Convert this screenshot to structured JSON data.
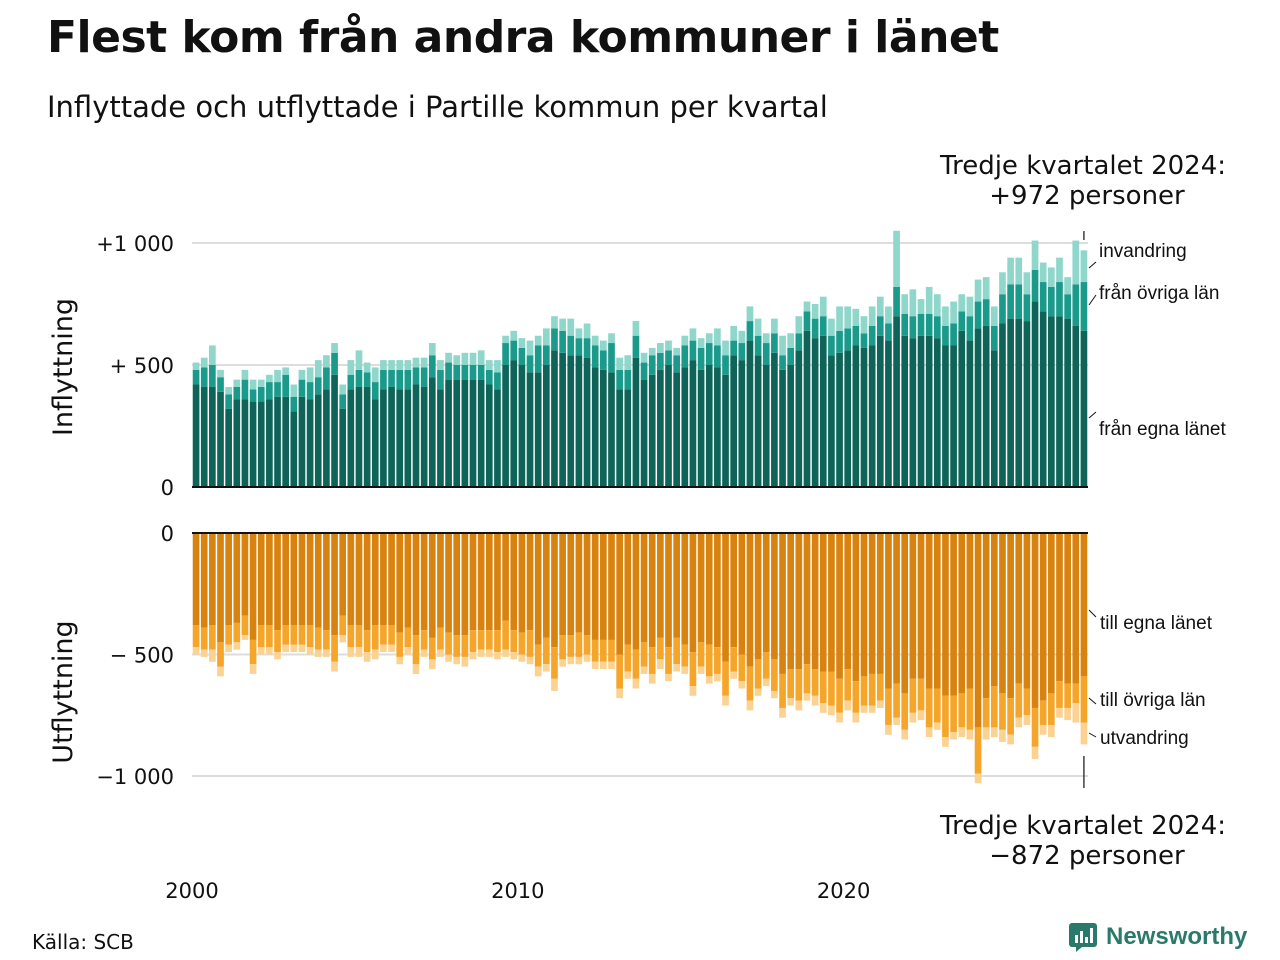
{
  "title": "Flest kom från andra kommuner i länet",
  "subtitle": "Inflyttade och utflyttade i Partille kommun per kvartal",
  "source": "Källa: SCB",
  "brand": "Newsworthy",
  "colors": {
    "in_own": "#0e6458",
    "in_other": "#1a9a8a",
    "in_immig": "#8fd6cb",
    "out_own": "#d88310",
    "out_other": "#f5a52a",
    "out_emig": "#fad393"
  },
  "chart_data": {
    "type": "bar",
    "stacked": true,
    "x_start": "2000 Q1",
    "x_ticks": [
      "2000",
      "2010",
      "2020"
    ],
    "gridlines": true,
    "panels": [
      {
        "name": "in",
        "ylabel": "Inflyttning",
        "ylim": [
          0,
          1050
        ],
        "yticks": [
          {
            "value": 1000,
            "label": "+1 000"
          },
          {
            "value": 500,
            "label": "+  500"
          },
          {
            "value": 0,
            "label": "0"
          }
        ],
        "annotation_title": "Tredje kvartalet 2024:",
        "annotation_value": "+972 personer",
        "series_labels": [
          "invandring",
          "från övriga län",
          "från egna länet"
        ]
      },
      {
        "name": "out",
        "ylabel": "Utflyttning",
        "ylim": [
          -1050,
          0
        ],
        "yticks": [
          {
            "value": 0,
            "label": "0"
          },
          {
            "value": -500,
            "label": "−  500"
          },
          {
            "value": -1000,
            "label": "−1 000"
          }
        ],
        "annotation_title": "Tredje kvartalet 2024:",
        "annotation_value": "−872 personer",
        "series_labels": [
          "till egna länet",
          "till övriga län",
          "utvandring"
        ]
      }
    ],
    "in_series": [
      {
        "name": "från egna länet",
        "values": [
          420,
          410,
          410,
          390,
          320,
          360,
          360,
          350,
          350,
          360,
          370,
          370,
          310,
          370,
          360,
          380,
          400,
          460,
          320,
          400,
          410,
          410,
          360,
          400,
          410,
          400,
          400,
          420,
          410,
          450,
          400,
          440,
          440,
          440,
          440,
          440,
          420,
          400,
          500,
          520,
          500,
          470,
          470,
          500,
          560,
          550,
          540,
          540,
          530,
          490,
          480,
          470,
          400,
          400,
          530,
          440,
          460,
          480,
          500,
          470,
          490,
          520,
          480,
          500,
          490,
          460,
          540,
          520,
          600,
          540,
          500,
          550,
          480,
          500,
          560,
          640,
          610,
          620,
          540,
          550,
          560,
          580,
          570,
          580,
          620,
          600,
          700,
          620,
          610,
          620,
          620,
          610,
          580,
          580,
          640,
          600,
          650,
          660,
          560,
          670,
          690,
          690,
          680,
          760,
          720,
          700,
          700,
          690,
          660,
          640
        ]
      },
      {
        "name": "från övriga län",
        "values": [
          60,
          80,
          90,
          60,
          60,
          50,
          80,
          50,
          60,
          70,
          60,
          90,
          60,
          70,
          70,
          70,
          90,
          90,
          60,
          60,
          70,
          60,
          70,
          80,
          70,
          80,
          80,
          70,
          80,
          90,
          80,
          70,
          60,
          60,
          60,
          60,
          60,
          70,
          90,
          80,
          70,
          70,
          110,
          80,
          90,
          90,
          80,
          70,
          80,
          90,
          80,
          120,
          80,
          80,
          90,
          70,
          80,
          70,
          60,
          70,
          90,
          80,
          90,
          90,
          90,
          80,
          60,
          70,
          80,
          80,
          90,
          80,
          60,
          70,
          70,
          80,
          80,
          80,
          80,
          90,
          90,
          80,
          60,
          80,
          80,
          70,
          120,
          90,
          90,
          90,
          90,
          90,
          80,
          90,
          80,
          100,
          110,
          110,
          100,
          120,
          140,
          140,
          110,
          130,
          120,
          120,
          140,
          100,
          170,
          200
        ]
      },
      {
        "name": "invandring",
        "values": [
          30,
          40,
          80,
          30,
          30,
          30,
          40,
          40,
          30,
          30,
          50,
          30,
          50,
          40,
          60,
          70,
          50,
          40,
          40,
          60,
          80,
          40,
          60,
          40,
          40,
          40,
          40,
          40,
          40,
          50,
          40,
          40,
          40,
          50,
          50,
          60,
          40,
          50,
          30,
          40,
          40,
          60,
          40,
          70,
          50,
          50,
          70,
          40,
          60,
          40,
          40,
          40,
          50,
          60,
          60,
          40,
          30,
          40,
          40,
          30,
          40,
          50,
          40,
          40,
          70,
          60,
          60,
          50,
          60,
          70,
          40,
          60,
          80,
          60,
          70,
          40,
          60,
          80,
          70,
          100,
          90,
          70,
          70,
          80,
          80,
          70,
          230,
          80,
          110,
          60,
          110,
          90,
          80,
          90,
          70,
          80,
          90,
          90,
          80,
          90,
          110,
          110,
          90,
          120,
          80,
          80,
          100,
          70,
          180,
          130
        ]
      }
    ],
    "out_series": [
      {
        "name": "till egna länet",
        "values": [
          380,
          390,
          380,
          450,
          380,
          370,
          340,
          440,
          380,
          380,
          400,
          380,
          380,
          380,
          380,
          390,
          400,
          420,
          340,
          380,
          380,
          400,
          380,
          380,
          380,
          410,
          390,
          420,
          400,
          430,
          390,
          410,
          420,
          420,
          400,
          400,
          400,
          400,
          360,
          400,
          410,
          400,
          460,
          430,
          470,
          420,
          420,
          410,
          420,
          440,
          440,
          440,
          500,
          460,
          480,
          450,
          470,
          430,
          470,
          430,
          460,
          490,
          450,
          460,
          470,
          530,
          470,
          500,
          550,
          520,
          490,
          520,
          580,
          560,
          560,
          540,
          560,
          570,
          570,
          600,
          560,
          610,
          590,
          580,
          580,
          640,
          620,
          660,
          600,
          600,
          640,
          640,
          670,
          670,
          660,
          640,
          800,
          680,
          630,
          660,
          680,
          620,
          640,
          720,
          690,
          660,
          610,
          620,
          620,
          590
        ]
      },
      {
        "name": "till övriga län",
        "values": [
          90,
          90,
          100,
          100,
          80,
          80,
          80,
          100,
          90,
          90,
          90,
          80,
          80,
          80,
          90,
          90,
          80,
          110,
          80,
          90,
          90,
          90,
          100,
          80,
          80,
          100,
          80,
          120,
          80,
          90,
          90,
          90,
          90,
          90,
          90,
          80,
          80,
          90,
          120,
          90,
          90,
          110,
          90,
          110,
          130,
          100,
          90,
          100,
          80,
          90,
          90,
          90,
          140,
          110,
          120,
          100,
          110,
          90,
          110,
          110,
          90,
          140,
          100,
          130,
          110,
          140,
          100,
          110,
          140,
          120,
          110,
          130,
          140,
          120,
          130,
          120,
          110,
          130,
          140,
          140,
          130,
          130,
          120,
          130,
          110,
          150,
          140,
          150,
          140,
          130,
          160,
          140,
          170,
          150,
          140,
          170,
          190,
          120,
          170,
          150,
          150,
          140,
          110,
          160,
          100,
          130,
          110,
          100,
          80,
          190
        ]
      },
      {
        "name": "utvandring",
        "values": [
          30,
          30,
          50,
          40,
          30,
          30,
          20,
          40,
          30,
          30,
          30,
          30,
          30,
          30,
          30,
          30,
          30,
          40,
          30,
          40,
          40,
          40,
          40,
          30,
          30,
          30,
          30,
          40,
          30,
          40,
          30,
          30,
          30,
          40,
          30,
          30,
          30,
          30,
          30,
          30,
          30,
          30,
          40,
          30,
          50,
          30,
          30,
          30,
          30,
          30,
          30,
          30,
          40,
          30,
          40,
          30,
          40,
          40,
          30,
          30,
          30,
          40,
          30,
          30,
          30,
          40,
          30,
          30,
          40,
          30,
          30,
          30,
          40,
          30,
          40,
          30,
          40,
          40,
          40,
          40,
          40,
          40,
          30,
          30,
          30,
          40,
          30,
          40,
          40,
          40,
          40,
          30,
          40,
          30,
          40,
          40,
          40,
          50,
          40,
          50,
          40,
          40,
          40,
          50,
          40,
          50,
          40,
          50,
          80,
          90
        ]
      }
    ]
  }
}
